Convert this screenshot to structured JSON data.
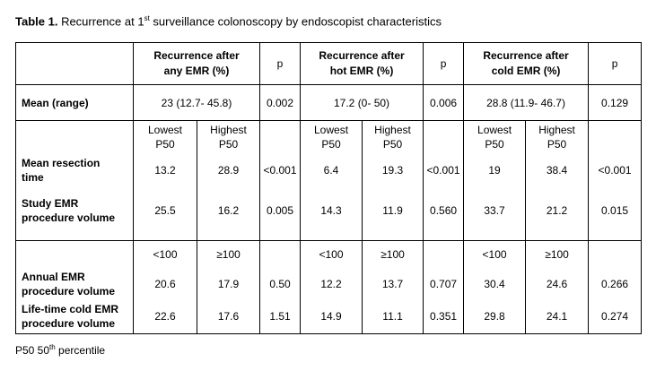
{
  "caption": {
    "bold": "Table 1.",
    "text_before_sup": " Recurrence at 1",
    "sup": "st",
    "text_after_sup": " surveillance colonoscopy by endoscopist characteristics"
  },
  "header": {
    "any_line1": "Recurrence after",
    "any_line2": "any EMR (%)",
    "hot_line1": "Recurrence after",
    "hot_line2": "hot EMR (%)",
    "cold_line1": "Recurrence after",
    "cold_line2": "cold EMR (%)",
    "p": "p"
  },
  "mean_row": {
    "label": "Mean (range)",
    "any": "23 (12.7- 45.8)",
    "any_p": "0.002",
    "hot": "17.2 (0- 50)",
    "hot_p": "0.006",
    "cold": "28.8 (11.9- 46.7)",
    "cold_p": "0.129"
  },
  "group1": {
    "col_lo_line1": "Lowest",
    "col_lo_line2": "P50",
    "col_hi_line1": "Highest",
    "col_hi_line2": "P50",
    "rows": [
      {
        "label_line1": "Mean resection",
        "label_line2": "time",
        "any_lo": "13.2",
        "any_hi": "28.9",
        "any_p": "<0.001",
        "hot_lo": "6.4",
        "hot_hi": "19.3",
        "hot_p": "<0.001",
        "cold_lo": "19",
        "cold_hi": "38.4",
        "cold_p": "<0.001"
      },
      {
        "label_line1": "Study EMR",
        "label_line2": "procedure volume",
        "any_lo": "25.5",
        "any_hi": "16.2",
        "any_p": "0.005",
        "hot_lo": "14.3",
        "hot_hi": "11.9",
        "hot_p": "0.560",
        "cold_lo": "33.7",
        "cold_hi": "21.2",
        "cold_p": "0.015"
      }
    ]
  },
  "group2": {
    "col_lo": "<100",
    "col_hi": "≥100",
    "rows": [
      {
        "label_line1": "Annual EMR",
        "label_line2": "procedure volume",
        "any_lo": "20.6",
        "any_hi": "17.9",
        "any_p": "0.50",
        "hot_lo": "12.2",
        "hot_hi": "13.7",
        "hot_p": "0.707",
        "cold_lo": "30.4",
        "cold_hi": "24.6",
        "cold_p": "0.266"
      },
      {
        "label_line1": "Life-time cold EMR",
        "label_line2": "procedure volume",
        "any_lo": "22.6",
        "any_hi": "17.6",
        "any_p": "1.51",
        "hot_lo": "14.9",
        "hot_hi": "11.1",
        "hot_p": "0.351",
        "cold_lo": "29.8",
        "cold_hi": "24.1",
        "cold_p": "0.274"
      }
    ]
  },
  "footnote": {
    "before_sup": "P50 50",
    "sup": "th",
    "after_sup": " percentile"
  }
}
